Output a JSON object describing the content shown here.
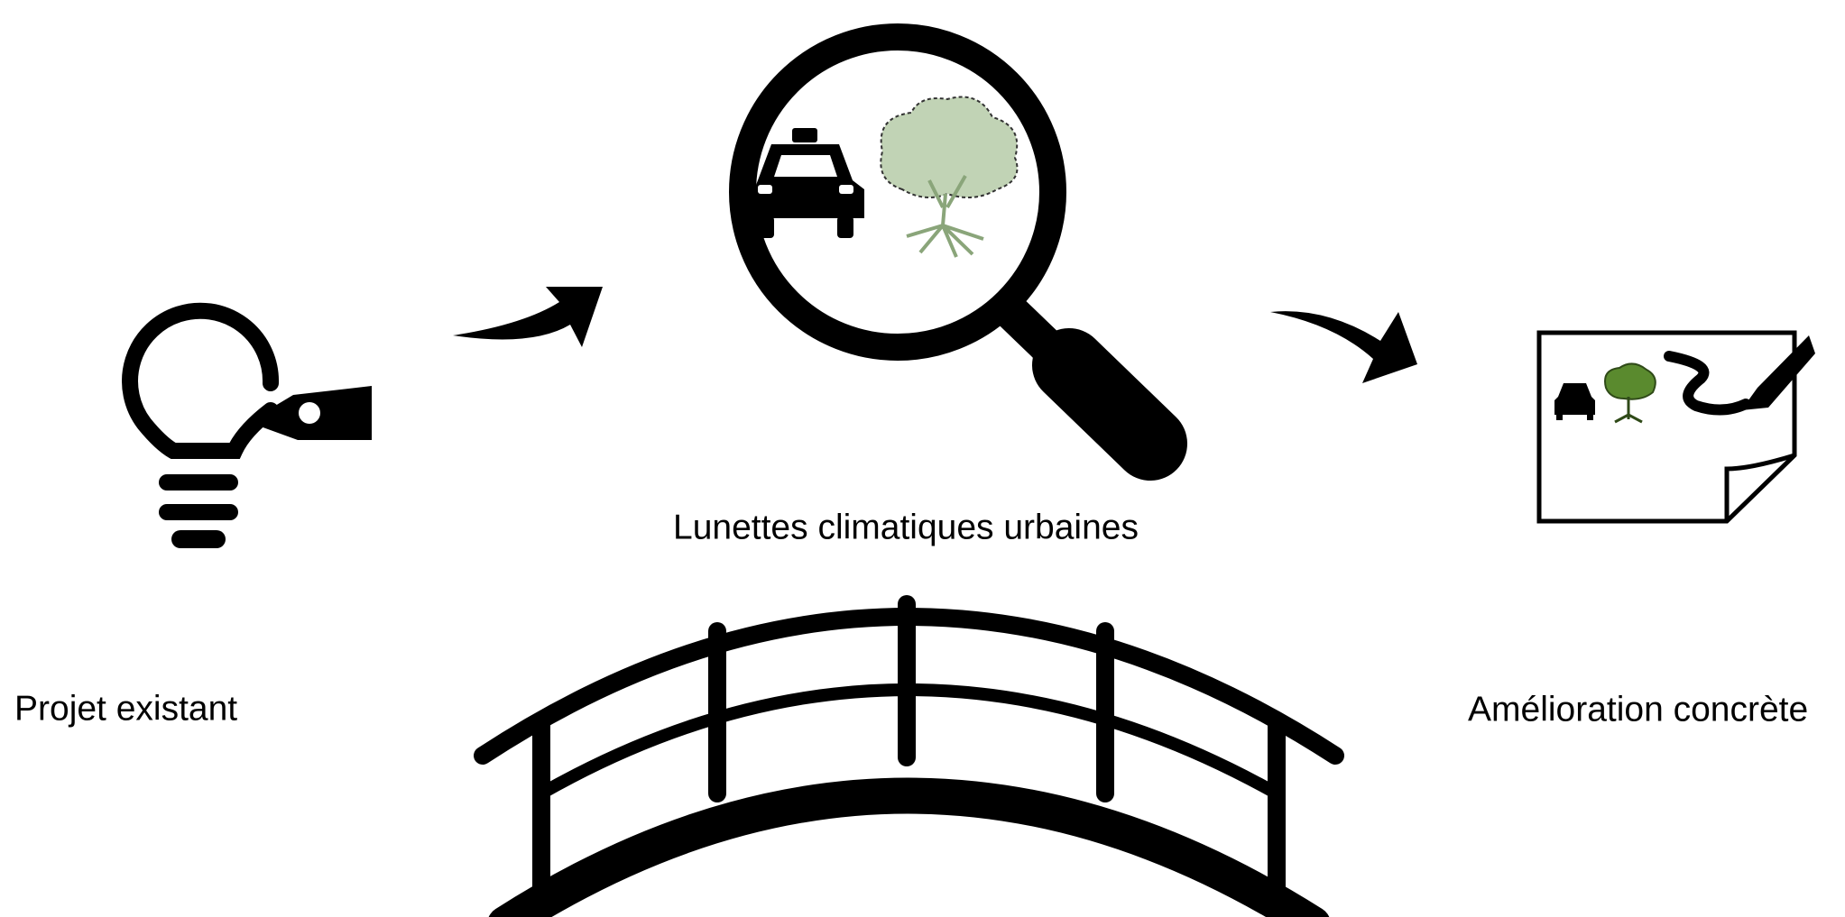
{
  "nodes": [
    {
      "label": "Projet existant"
    },
    {
      "label": "Lunettes climatiques urbaines"
    },
    {
      "label": "Amélioration concrète"
    }
  ]
}
